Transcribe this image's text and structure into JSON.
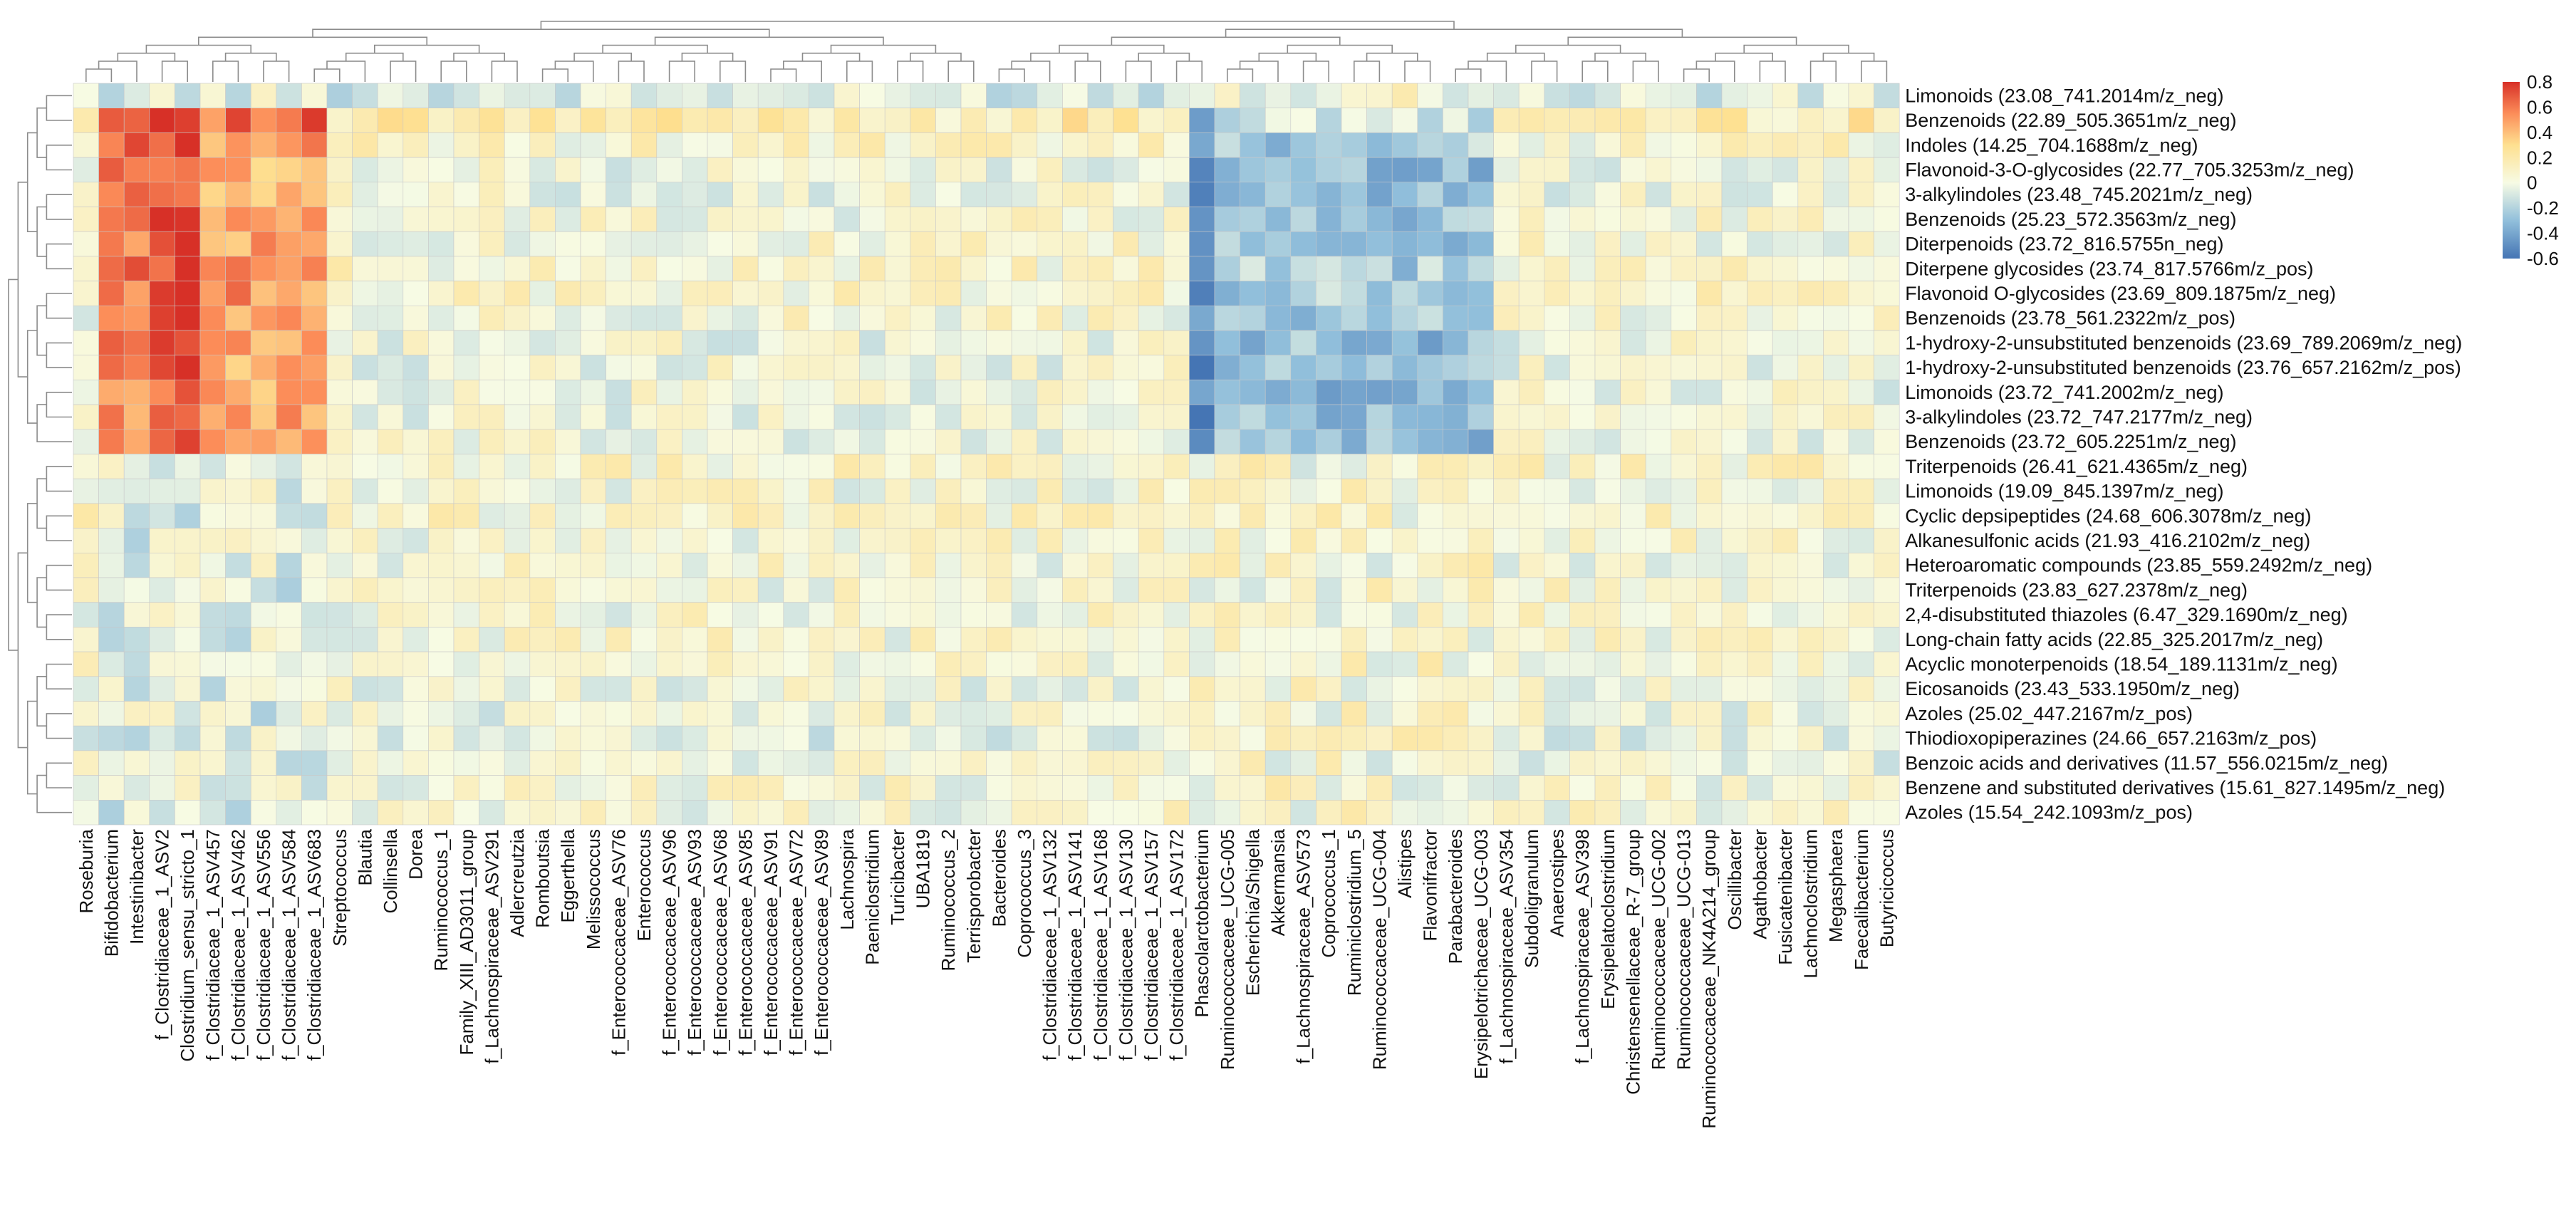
{
  "chart_data": {
    "type": "heatmap",
    "title": "",
    "xlabel": "",
    "ylabel": "",
    "rows": [
      "Limonoids (23.08_741.2014m/z_neg)",
      "Benzenoids (22.89_505.3651m/z_neg)",
      "Indoles (14.25_704.1688m/z_neg)",
      "Flavonoid-3-O-glycosides (22.77_705.3253m/z_neg)",
      "3-alkylindoles (23.48_745.2021m/z_neg)",
      "Benzenoids (25.23_572.3563m/z_neg)",
      "Diterpenoids (23.72_816.5755n_neg)",
      "Diterpene glycosides (23.74_817.5766m/z_pos)",
      "Flavonoid O-glycosides (23.69_809.1875m/z_neg)",
      "Benzenoids (23.78_561.2322m/z_pos)",
      "1-hydroxy-2-unsubstituted benzenoids (23.69_789.2069m/z_neg)",
      "1-hydroxy-2-unsubstituted benzenoids (23.76_657.2162m/z_pos)",
      "Limonoids (23.72_741.2002m/z_neg)",
      "3-alkylindoles (23.72_747.2177m/z_neg)",
      "Benzenoids (23.72_605.2251m/z_neg)",
      "Triterpenoids (26.41_621.4365m/z_neg)",
      "Limonoids (19.09_845.1397m/z_neg)",
      "Cyclic depsipeptides (24.68_606.3078m/z_neg)",
      "Alkanesulfonic acids (21.93_416.2102m/z_neg)",
      "Heteroaromatic compounds (23.85_559.2492m/z_neg)",
      "Triterpenoids (23.83_627.2378m/z_neg)",
      "2,4-disubstituted thiazoles (6.47_329.1690m/z_neg)",
      "Long-chain fatty acids (22.85_325.2017m/z_neg)",
      "Acyclic monoterpenoids (18.54_189.1131m/z_neg)",
      "Eicosanoids (23.43_533.1950m/z_neg)",
      "Azoles (25.02_447.2167m/z_pos)",
      "Thiodioxopiperazines (24.66_657.2163m/z_pos)",
      "Benzoic acids and derivatives (11.57_556.0215m/z_neg)",
      "Benzene and substituted derivatives (15.61_827.1495m/z_neg)",
      "Azoles (15.54_242.1093m/z_pos)"
    ],
    "columns": [
      "Roseburia",
      "Bifidobacterium",
      "Intestinibacter",
      "f_Clostridiaceae_1_ASV2",
      "Clostridium_sensu_stricto_1",
      "f_Clostridiaceae_1_ASV457",
      "f_Clostridiaceae_1_ASV462",
      "f_Clostridiaceae_1_ASV556",
      "f_Clostridiaceae_1_ASV584",
      "f_Clostridiaceae_1_ASV683",
      "Streptococcus",
      "Blautia",
      "Collinsella",
      "Dorea",
      "Ruminococcus_1",
      "Family_XIII_AD3011_group",
      "f_Lachnospiraceae_ASV291",
      "Adlercreutzia",
      "Romboutsia",
      "Eggerthella",
      "Melissococcus",
      "f_Enterococcaceae_ASV76",
      "Enterococcus",
      "f_Enterococcaceae_ASV96",
      "f_Enterococcaceae_ASV93",
      "f_Enterococcaceae_ASV68",
      "f_Enterococcaceae_ASV85",
      "f_Enterococcaceae_ASV91",
      "f_Enterococcaceae_ASV72",
      "f_Enterococcaceae_ASV89",
      "Lachnospira",
      "Paeniclostridium",
      "Turicibacter",
      "UBA1819",
      "Ruminococcus_2",
      "Terrisporobacter",
      "Bacteroides",
      "Coprococcus_3",
      "f_Clostridiaceae_1_ASV132",
      "f_Clostridiaceae_1_ASV141",
      "f_Clostridiaceae_1_ASV168",
      "f_Clostridiaceae_1_ASV130",
      "f_Clostridiaceae_1_ASV157",
      "f_Clostridiaceae_1_ASV172",
      "Phascolarctobacterium",
      "Ruminococcaceae_UCG-005",
      "Escherichia/Shigella",
      "Akkermansia",
      "f_Lachnospiraceae_ASV573",
      "Coprococcus_1",
      "Ruminiclostridium_5",
      "Ruminococcaceae_UCG-004",
      "Alistipes",
      "Flavonifractor",
      "Parabacteroides",
      "Erysipelotrichaceae_UCG-003",
      "f_Lachnospiraceae_ASV354",
      "Subdoligranulum",
      "Anaerostipes",
      "f_Lachnospiraceae_ASV398",
      "Erysipelatoclostridium",
      "Christensenellaceae_R-7_group",
      "Ruminococcaceae_UCG-002",
      "Ruminococcaceae_UCG-013",
      "Ruminococcaceae_NK4A214_group",
      "Oscillibacter",
      "Agathobacter",
      "Fusicatenibacter",
      "Lachnoclostridium",
      "Megasphaera",
      "Faecalibacterium",
      "Butyricicoccus"
    ],
    "row_base": [
      -0.1,
      0.25,
      0.1,
      0.0,
      0.0,
      0.05,
      0.05,
      0.1,
      0.1,
      0.05,
      0.0,
      0.0,
      0.0,
      0.0,
      0.0,
      0.1,
      0.05,
      0.1,
      0.05,
      0.05,
      0.05,
      0.05,
      0.05,
      0.05,
      0.0,
      0.0,
      -0.05,
      0.0,
      0.05,
      0.05
    ],
    "row_group_top": [
      0,
      1,
      1,
      1,
      1,
      1,
      1,
      1,
      1,
      1,
      1,
      1,
      1,
      1,
      1,
      0,
      0,
      0,
      0,
      0,
      0,
      0,
      0,
      0,
      0,
      0,
      0,
      0,
      0,
      0
    ],
    "col_group": [
      0,
      1,
      1,
      3,
      3,
      2,
      2,
      2,
      2,
      2,
      0,
      0,
      0,
      0,
      0,
      0,
      0,
      0,
      0,
      0,
      0,
      0,
      0,
      0,
      0,
      0,
      0,
      0,
      0,
      0,
      0,
      0,
      0,
      0,
      0,
      0,
      0,
      0,
      0,
      0,
      0,
      0,
      0,
      0,
      5,
      4,
      4,
      4,
      4,
      4,
      4,
      4,
      4,
      4,
      4,
      4,
      0,
      0,
      0,
      0,
      0,
      0,
      0,
      0,
      0,
      0,
      0,
      0,
      0,
      0,
      0,
      0
    ],
    "group_shift": [
      0.0,
      0.55,
      0.45,
      0.7,
      -0.3,
      -0.55
    ],
    "color_scale": {
      "min": -0.6,
      "max": 0.8,
      "stops": [
        {
          "value": -0.6,
          "color": "#4575b4"
        },
        {
          "value": -0.3,
          "color": "#91bfdb"
        },
        {
          "value": 0.0,
          "color": "#f7fbe4"
        },
        {
          "value": 0.3,
          "color": "#fee090"
        },
        {
          "value": 0.55,
          "color": "#fc8d59"
        },
        {
          "value": 0.8,
          "color": "#d73027"
        }
      ]
    },
    "legend_ticks": [
      "0.8",
      "0.6",
      "0.4",
      "0.2",
      "0",
      "-0.2",
      "-0.4",
      "-0.6"
    ],
    "legend_tick_values": [
      0.8,
      0.6,
      0.4,
      0.2,
      0.0,
      -0.2,
      -0.4,
      -0.6
    ],
    "legend_position": "top-right",
    "grid": true,
    "row_dendrogram": true,
    "column_dendrogram": true
  }
}
